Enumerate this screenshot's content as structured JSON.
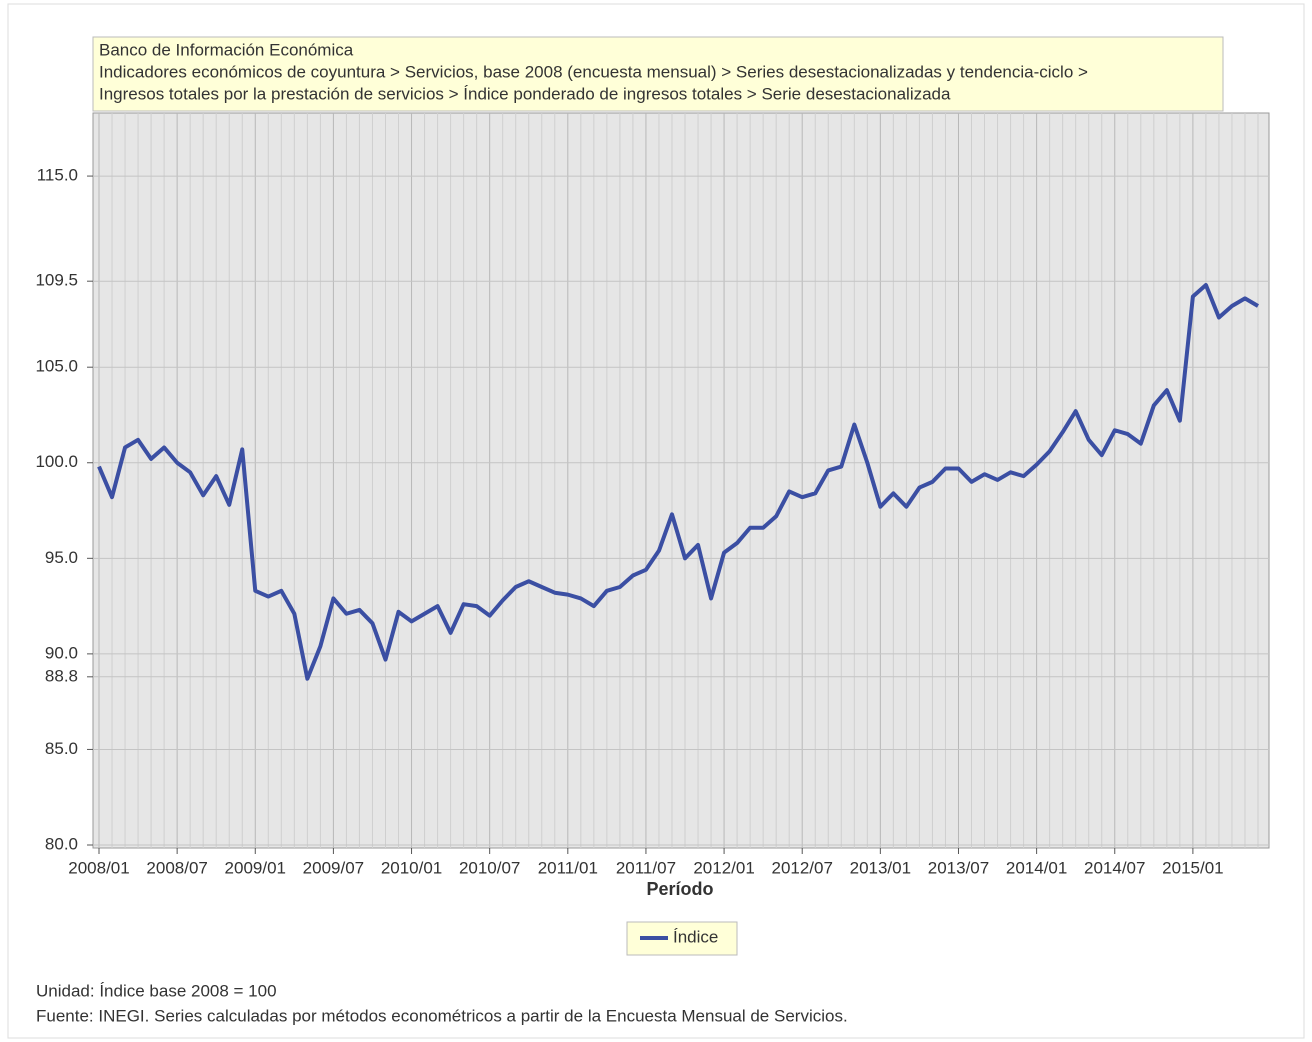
{
  "chart_data": {
    "type": "line",
    "header_lines": [
      "Banco de Información Económica",
      "Indicadores económicos de coyuntura > Servicios, base 2008 (encuesta mensual) > Series desestacionalizadas y tendencia-ciclo >",
      "Ingresos totales por la prestación de servicios > Índice ponderado de ingresos totales > Serie desestacionalizada"
    ],
    "x_label": "Período",
    "categories": [
      "2008/01",
      null,
      null,
      null,
      null,
      null,
      "2008/07",
      null,
      null,
      null,
      null,
      null,
      "2009/01",
      null,
      null,
      null,
      null,
      null,
      "2009/07",
      null,
      null,
      null,
      null,
      null,
      "2010/01",
      null,
      null,
      null,
      null,
      null,
      "2010/07",
      null,
      null,
      null,
      null,
      null,
      "2011/01",
      null,
      null,
      null,
      null,
      null,
      "2011/07",
      null,
      null,
      null,
      null,
      null,
      "2012/01",
      null,
      null,
      null,
      null,
      null,
      "2012/07",
      null,
      null,
      null,
      null,
      null,
      "2013/01",
      null,
      null,
      null,
      null,
      null,
      "2013/07",
      null,
      null,
      null,
      null,
      null,
      "2014/01",
      null,
      null,
      null,
      null,
      null,
      "2014/07",
      null,
      null,
      null,
      null,
      null,
      "2015/01",
      null,
      null,
      null,
      null,
      null
    ],
    "series": [
      {
        "name": "Índice",
        "color": "#3b4fa3",
        "values": [
          99.8,
          98.2,
          100.8,
          101.2,
          100.2,
          100.8,
          100.0,
          99.5,
          98.3,
          99.3,
          97.8,
          100.7,
          93.3,
          93.0,
          93.3,
          92.1,
          88.7,
          90.4,
          92.9,
          92.1,
          92.3,
          91.6,
          89.7,
          92.2,
          91.7,
          92.1,
          92.5,
          91.1,
          92.6,
          92.5,
          92.0,
          92.8,
          93.5,
          93.8,
          93.5,
          93.2,
          93.1,
          92.9,
          92.5,
          93.3,
          93.5,
          94.1,
          94.4,
          95.4,
          97.3,
          95.0,
          95.7,
          92.9,
          95.3,
          95.8,
          96.6,
          96.6,
          97.2,
          98.5,
          98.2,
          98.4,
          99.6,
          99.8,
          102.0,
          100.0,
          97.7,
          98.4,
          97.7,
          98.7,
          99.0,
          99.7,
          99.7,
          99.0,
          99.4,
          99.1,
          99.5,
          99.3,
          99.9,
          100.6,
          101.6,
          102.7,
          101.2,
          100.4,
          101.7,
          101.5,
          101.0,
          103.0,
          103.8,
          102.2,
          108.7,
          109.3,
          107.6,
          108.2,
          108.6,
          108.2
        ]
      }
    ],
    "ylim": [
      80,
      118.3
    ],
    "yticks": [
      {
        "value": 80,
        "label": "80.0"
      },
      {
        "value": 85,
        "label": "85.0"
      },
      {
        "value": 88.8,
        "label": "88.8"
      },
      {
        "value": 90,
        "label": "90.0"
      },
      {
        "value": 95,
        "label": "95.0"
      },
      {
        "value": 100,
        "label": "100.0"
      },
      {
        "value": 105,
        "label": "105.0"
      },
      {
        "value": 109.5,
        "label": "109.5"
      },
      {
        "value": 115,
        "label": "115.0"
      }
    ],
    "grid": true,
    "unit_note": "Unidad: Índice base 2008 = 100",
    "source_note": "Fuente: INEGI. Series calculadas por métodos econométricos a partir de la Encuesta Mensual de Servicios."
  }
}
